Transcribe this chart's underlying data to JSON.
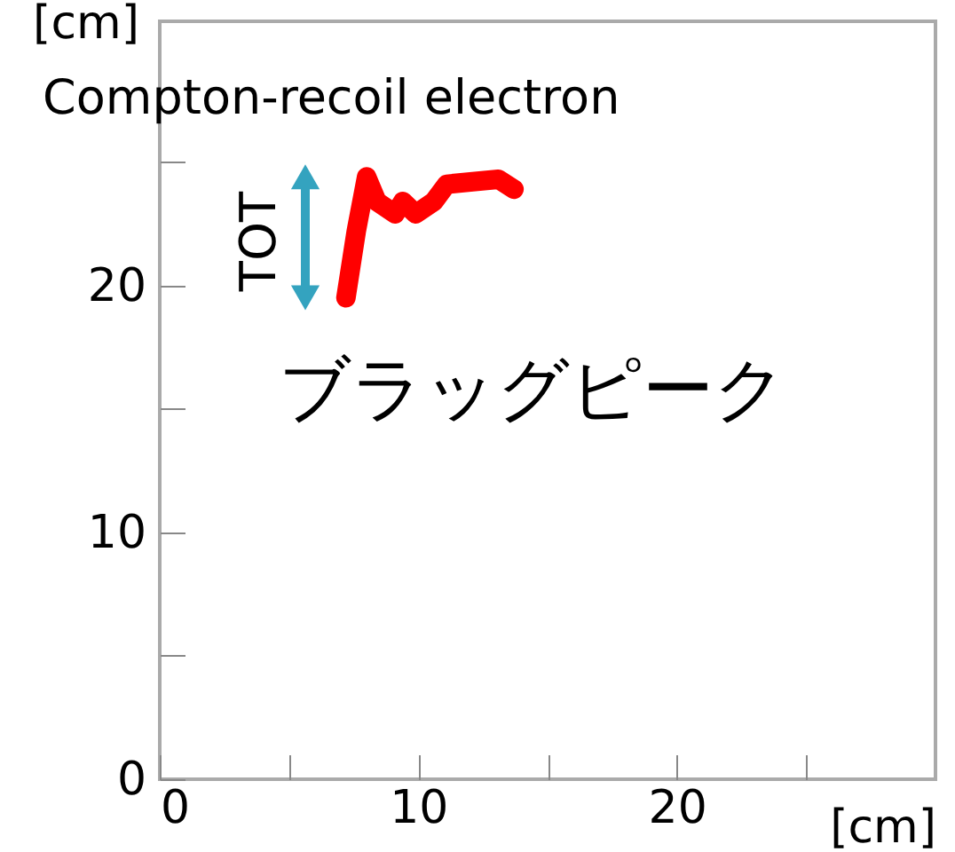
{
  "chart_data": {
    "type": "line",
    "title": "Compton-recoil electron",
    "xlabel": "[cm]",
    "ylabel": "[cm]",
    "x": [
      7.2,
      7.6,
      8.0,
      8.4,
      9.1,
      9.4,
      9.9,
      10.6,
      11.1,
      12.1,
      13.1,
      13.7
    ],
    "series": [
      {
        "color": "#ff0000",
        "values": [
          19.5,
          22.2,
          24.4,
          23.4,
          22.9,
          23.4,
          22.9,
          23.4,
          24.1,
          24.2,
          24.3,
          23.9
        ]
      }
    ],
    "xlim": [
      0,
      30
    ],
    "ylim": [
      0,
      30.7
    ],
    "xticks": [
      0,
      {
        "value": 5,
        "label": null
      },
      10,
      {
        "value": 15,
        "label": null
      },
      20,
      {
        "value": 25,
        "label": null
      }
    ],
    "yticks": [
      0,
      {
        "value": 5,
        "label": null
      },
      10,
      {
        "value": 15,
        "label": null
      },
      20,
      {
        "value": 25,
        "label": null
      }
    ],
    "annotations": [
      "TOT",
      "ブラッグピーク"
    ],
    "grid": false,
    "legend": false,
    "marker": "none",
    "line_style": "solid"
  }
}
